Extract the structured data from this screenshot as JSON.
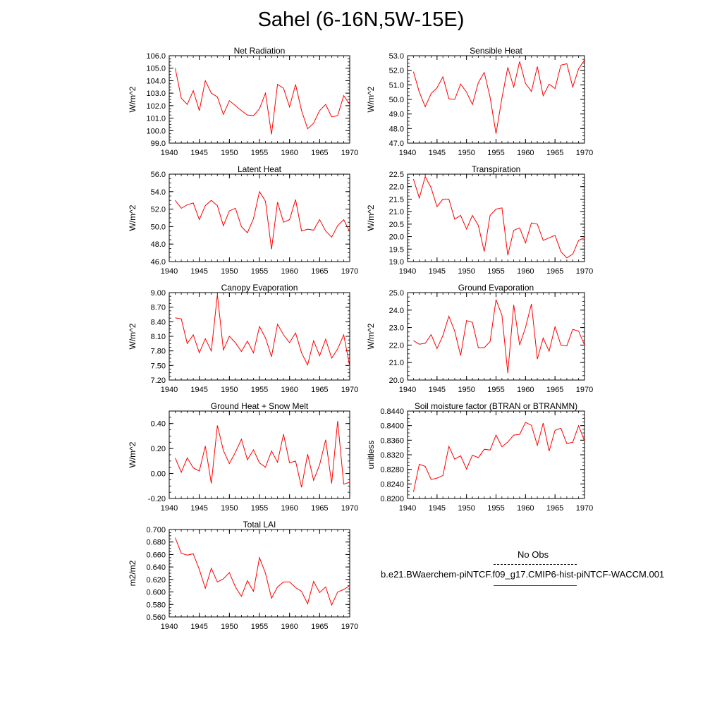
{
  "title": "Sahel (6-16N,5W-15E)",
  "colors": {
    "model": "#ff0000",
    "axis": "#000000",
    "obs": "#000000"
  },
  "legend": {
    "obs_label": "No Obs",
    "case_label": "b.e21.BWaerchem-piNTCF.f09_g17.CMIP6-hist-piNTCF-WACCM.001"
  },
  "chart_data": [
    {
      "type": "line",
      "title": "Net Radiation",
      "ylabel": "W/m^2",
      "xlim": [
        1940,
        1970
      ],
      "xticks": [
        1940,
        1945,
        1950,
        1955,
        1960,
        1965,
        1970
      ],
      "ylim": [
        99,
        106
      ],
      "yticks": [
        "99.0",
        "100.0",
        "101.0",
        "102.0",
        "103.0",
        "104.0",
        "105.0",
        "106.0"
      ],
      "x": [
        1941,
        1942,
        1943,
        1944,
        1945,
        1946,
        1947,
        1948,
        1949,
        1950,
        1951,
        1952,
        1953,
        1954,
        1955,
        1956,
        1957,
        1958,
        1959,
        1960,
        1961,
        1962,
        1963,
        1964,
        1965,
        1966,
        1967,
        1968,
        1969,
        1970
      ],
      "series": [
        {
          "values": [
            105.0,
            102.6,
            102.1,
            103.2,
            101.6,
            104.0,
            103.0,
            102.7,
            101.3,
            102.4,
            102.0,
            101.6,
            101.25,
            101.2,
            101.75,
            103.0,
            99.7,
            103.7,
            103.4,
            101.9,
            103.7,
            101.6,
            100.15,
            100.6,
            101.6,
            102.1,
            101.1,
            101.2,
            102.8,
            102.1
          ]
        }
      ]
    },
    {
      "type": "line",
      "title": "Sensible Heat",
      "ylabel": "W/m^2",
      "xlim": [
        1940,
        1970
      ],
      "xticks": [
        1940,
        1945,
        1950,
        1955,
        1960,
        1965,
        1970
      ],
      "ylim": [
        47,
        53
      ],
      "yticks": [
        "47.0",
        "48.0",
        "49.0",
        "50.0",
        "51.0",
        "52.0",
        "53.0"
      ],
      "x": [
        1941,
        1942,
        1943,
        1944,
        1945,
        1946,
        1947,
        1948,
        1949,
        1950,
        1951,
        1952,
        1953,
        1954,
        1955,
        1956,
        1957,
        1958,
        1959,
        1960,
        1961,
        1962,
        1963,
        1964,
        1965,
        1966,
        1967,
        1968,
        1969,
        1970
      ],
      "series": [
        {
          "values": [
            51.9,
            50.5,
            49.5,
            50.4,
            50.8,
            51.55,
            50.05,
            50.0,
            51.05,
            50.5,
            49.65,
            51.15,
            51.85,
            50.15,
            47.65,
            50.1,
            52.2,
            50.85,
            52.6,
            51.1,
            50.55,
            52.25,
            50.25,
            51.05,
            50.75,
            52.35,
            52.45,
            50.85,
            52.1,
            52.7
          ]
        }
      ]
    },
    {
      "type": "line",
      "title": "Latent Heat",
      "ylabel": "W/m^2",
      "xlim": [
        1940,
        1970
      ],
      "xticks": [
        1940,
        1945,
        1950,
        1955,
        1960,
        1965,
        1970
      ],
      "ylim": [
        46,
        56
      ],
      "yticks": [
        "46.0",
        "48.0",
        "50.0",
        "52.0",
        "54.0",
        "56.0"
      ],
      "x": [
        1941,
        1942,
        1943,
        1944,
        1945,
        1946,
        1947,
        1948,
        1949,
        1950,
        1951,
        1952,
        1953,
        1954,
        1955,
        1956,
        1957,
        1958,
        1959,
        1960,
        1961,
        1962,
        1963,
        1964,
        1965,
        1966,
        1967,
        1968,
        1969,
        1970
      ],
      "series": [
        {
          "values": [
            53.0,
            52.1,
            52.5,
            52.7,
            50.8,
            52.4,
            53.0,
            52.4,
            50.1,
            51.8,
            52.1,
            50.0,
            49.3,
            50.9,
            54.0,
            52.9,
            47.4,
            52.8,
            50.5,
            50.8,
            53.1,
            49.5,
            49.7,
            49.6,
            50.8,
            49.5,
            48.8,
            50.1,
            50.8,
            49.4
          ]
        }
      ]
    },
    {
      "type": "line",
      "title": "Transpiration",
      "ylabel": "W/m^2",
      "xlim": [
        1940,
        1970
      ],
      "xticks": [
        1940,
        1945,
        1950,
        1955,
        1960,
        1965,
        1970
      ],
      "ylim": [
        19,
        22.5
      ],
      "yticks": [
        "19.0",
        "19.5",
        "20.0",
        "20.5",
        "21.0",
        "21.5",
        "22.0",
        "22.5"
      ],
      "x": [
        1941,
        1942,
        1943,
        1944,
        1945,
        1946,
        1947,
        1948,
        1949,
        1950,
        1951,
        1952,
        1953,
        1954,
        1955,
        1956,
        1957,
        1958,
        1959,
        1960,
        1961,
        1962,
        1963,
        1964,
        1965,
        1966,
        1967,
        1968,
        1969,
        1970
      ],
      "series": [
        {
          "values": [
            22.3,
            21.55,
            22.4,
            21.95,
            21.2,
            21.5,
            21.5,
            20.7,
            20.85,
            20.3,
            20.85,
            20.45,
            19.4,
            20.85,
            21.1,
            21.15,
            19.25,
            20.25,
            20.35,
            19.75,
            20.55,
            20.5,
            19.85,
            19.95,
            20.05,
            19.4,
            19.15,
            19.3,
            19.85,
            19.95
          ]
        }
      ]
    },
    {
      "type": "line",
      "title": "Canopy Evaporation",
      "ylabel": "W/m^2",
      "xlim": [
        1940,
        1970
      ],
      "xticks": [
        1940,
        1945,
        1950,
        1955,
        1960,
        1965,
        1970
      ],
      "ylim": [
        7.2,
        9.0
      ],
      "yticks": [
        "7.20",
        "7.50",
        "7.80",
        "8.10",
        "8.40",
        "8.70",
        "9.00"
      ],
      "x": [
        1941,
        1942,
        1943,
        1944,
        1945,
        1946,
        1947,
        1948,
        1949,
        1950,
        1951,
        1952,
        1953,
        1954,
        1955,
        1956,
        1957,
        1958,
        1959,
        1960,
        1961,
        1962,
        1963,
        1964,
        1965,
        1966,
        1967,
        1968,
        1969,
        1970
      ],
      "series": [
        {
          "values": [
            8.48,
            8.46,
            7.95,
            8.13,
            7.76,
            8.05,
            7.8,
            8.96,
            7.82,
            8.1,
            7.97,
            7.79,
            8.0,
            7.76,
            8.3,
            8.07,
            7.68,
            8.35,
            8.13,
            7.97,
            8.17,
            7.76,
            7.51,
            8.01,
            7.7,
            8.04,
            7.65,
            7.84,
            8.13,
            7.48
          ]
        }
      ]
    },
    {
      "type": "line",
      "title": "Ground Evaporation",
      "ylabel": "W/m^2",
      "xlim": [
        1940,
        1970
      ],
      "xticks": [
        1940,
        1945,
        1950,
        1955,
        1960,
        1965,
        1970
      ],
      "ylim": [
        20,
        25
      ],
      "yticks": [
        "20.0",
        "21.0",
        "22.0",
        "23.0",
        "24.0",
        "25.0"
      ],
      "x": [
        1941,
        1942,
        1943,
        1944,
        1945,
        1946,
        1947,
        1948,
        1949,
        1950,
        1951,
        1952,
        1953,
        1954,
        1955,
        1956,
        1957,
        1958,
        1959,
        1960,
        1961,
        1962,
        1963,
        1964,
        1965,
        1966,
        1967,
        1968,
        1969,
        1970
      ],
      "series": [
        {
          "values": [
            22.25,
            22.05,
            22.1,
            22.6,
            21.8,
            22.55,
            23.65,
            22.8,
            21.4,
            23.4,
            23.3,
            21.85,
            21.85,
            22.2,
            24.6,
            23.7,
            20.4,
            24.3,
            22.0,
            23.0,
            24.35,
            21.2,
            22.4,
            21.65,
            23.05,
            22.0,
            21.95,
            22.9,
            22.8,
            22.0
          ]
        }
      ]
    },
    {
      "type": "line",
      "title": "Ground Heat + Snow Melt",
      "ylabel": "W/m^2",
      "xlim": [
        1940,
        1970
      ],
      "xticks": [
        1940,
        1945,
        1950,
        1955,
        1960,
        1965,
        1970
      ],
      "ylim": [
        -0.2,
        0.5
      ],
      "yticks": [
        "-0.20",
        "0.00",
        "0.20",
        "0.40"
      ],
      "ytick_values": [
        -0.2,
        0.0,
        0.2,
        0.4
      ],
      "x": [
        1941,
        1942,
        1943,
        1944,
        1945,
        1946,
        1947,
        1948,
        1949,
        1950,
        1951,
        1952,
        1953,
        1954,
        1955,
        1956,
        1957,
        1958,
        1959,
        1960,
        1961,
        1962,
        1963,
        1964,
        1965,
        1966,
        1967,
        1968,
        1969,
        1970
      ],
      "series": [
        {
          "values": [
            0.125,
            0.01,
            0.125,
            0.045,
            0.02,
            0.22,
            -0.08,
            0.385,
            0.185,
            0.08,
            0.17,
            0.275,
            0.11,
            0.19,
            0.085,
            0.05,
            0.18,
            0.09,
            0.315,
            0.085,
            0.1,
            -0.11,
            0.155,
            -0.055,
            0.07,
            0.27,
            -0.08,
            0.42,
            -0.085,
            -0.07
          ]
        }
      ]
    },
    {
      "type": "line",
      "title": "Soil moisture factor (BTRAN or BTRANMN)",
      "ylabel": "unitless",
      "xlim": [
        1940,
        1970
      ],
      "xticks": [
        1940,
        1945,
        1950,
        1955,
        1960,
        1965,
        1970
      ],
      "ylim": [
        0.82,
        0.844
      ],
      "yticks": [
        "0.8200",
        "0.8240",
        "0.8280",
        "0.8320",
        "0.8360",
        "0.8400",
        "0.8440"
      ],
      "x": [
        1941,
        1942,
        1943,
        1944,
        1945,
        1946,
        1947,
        1948,
        1949,
        1950,
        1951,
        1952,
        1953,
        1954,
        1955,
        1956,
        1957,
        1958,
        1959,
        1960,
        1961,
        1962,
        1963,
        1964,
        1965,
        1966,
        1967,
        1968,
        1969,
        1970
      ],
      "series": [
        {
          "values": [
            0.8218,
            0.8294,
            0.8288,
            0.8252,
            0.8256,
            0.8263,
            0.8343,
            0.8308,
            0.8317,
            0.8281,
            0.8319,
            0.8312,
            0.8335,
            0.8333,
            0.8374,
            0.8342,
            0.8355,
            0.8374,
            0.8376,
            0.8409,
            0.8401,
            0.8346,
            0.8407,
            0.833,
            0.8387,
            0.8393,
            0.8351,
            0.8354,
            0.84,
            0.8358
          ]
        }
      ]
    },
    {
      "type": "line",
      "title": "Total LAI",
      "ylabel": "m2/m2",
      "xlim": [
        1940,
        1970
      ],
      "xticks": [
        1940,
        1945,
        1950,
        1955,
        1960,
        1965,
        1970
      ],
      "ylim": [
        0.56,
        0.7
      ],
      "yticks": [
        "0.560",
        "0.580",
        "0.600",
        "0.620",
        "0.640",
        "0.660",
        "0.680",
        "0.700"
      ],
      "x": [
        1941,
        1942,
        1943,
        1944,
        1945,
        1946,
        1947,
        1948,
        1949,
        1950,
        1951,
        1952,
        1953,
        1954,
        1955,
        1956,
        1957,
        1958,
        1959,
        1960,
        1961,
        1962,
        1963,
        1964,
        1965,
        1966,
        1967,
        1968,
        1969,
        1970
      ],
      "series": [
        {
          "values": [
            0.687,
            0.662,
            0.659,
            0.661,
            0.636,
            0.606,
            0.638,
            0.616,
            0.621,
            0.631,
            0.608,
            0.593,
            0.618,
            0.601,
            0.655,
            0.63,
            0.59,
            0.608,
            0.616,
            0.616,
            0.607,
            0.601,
            0.581,
            0.617,
            0.599,
            0.608,
            0.579,
            0.6,
            0.604,
            0.61
          ]
        }
      ]
    }
  ]
}
